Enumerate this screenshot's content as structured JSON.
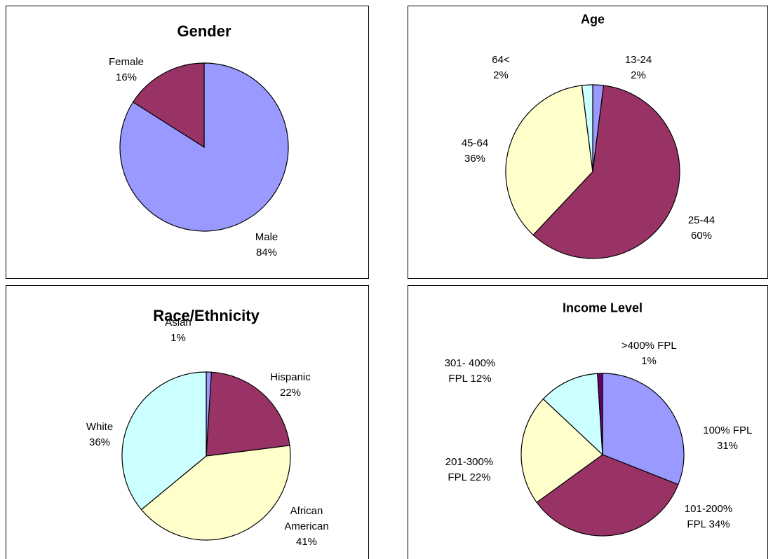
{
  "chart_data": [
    {
      "type": "pie",
      "title": "Gender",
      "categories": [
        "Male",
        "Female"
      ],
      "values": [
        84,
        16
      ],
      "value_labels": [
        "84%",
        "16%"
      ],
      "colors": [
        "#9999ff",
        "#993366"
      ]
    },
    {
      "type": "pie",
      "title": "Age",
      "categories": [
        "13-24",
        "25-44",
        "45-64",
        "64<"
      ],
      "values": [
        2,
        60,
        36,
        2
      ],
      "value_labels": [
        "2%",
        "60%",
        "36%",
        "2%"
      ],
      "colors": [
        "#9999ff",
        "#993366",
        "#ffffcc",
        "#ccffff"
      ]
    },
    {
      "type": "pie",
      "title": "Race/Ethnicity",
      "categories": [
        "Asian",
        "Hispanic",
        "African American",
        "White"
      ],
      "values": [
        1,
        22,
        41,
        36
      ],
      "value_labels": [
        "1%",
        "22%",
        "41%",
        "36%"
      ],
      "colors": [
        "#9999ff",
        "#993366",
        "#ffffcc",
        "#ccffff"
      ]
    },
    {
      "type": "pie",
      "title": "Income Level",
      "categories": [
        "100% FPL",
        "101-200% FPL",
        "201-300% FPL",
        "301- 400% FPL",
        ">400% FPL"
      ],
      "values": [
        31,
        34,
        22,
        12,
        1
      ],
      "value_labels": [
        "31%",
        "34%",
        "22%",
        "12%",
        "1%"
      ],
      "colors": [
        "#9999ff",
        "#993366",
        "#ffffcc",
        "#ccffff",
        "#660066"
      ]
    }
  ]
}
